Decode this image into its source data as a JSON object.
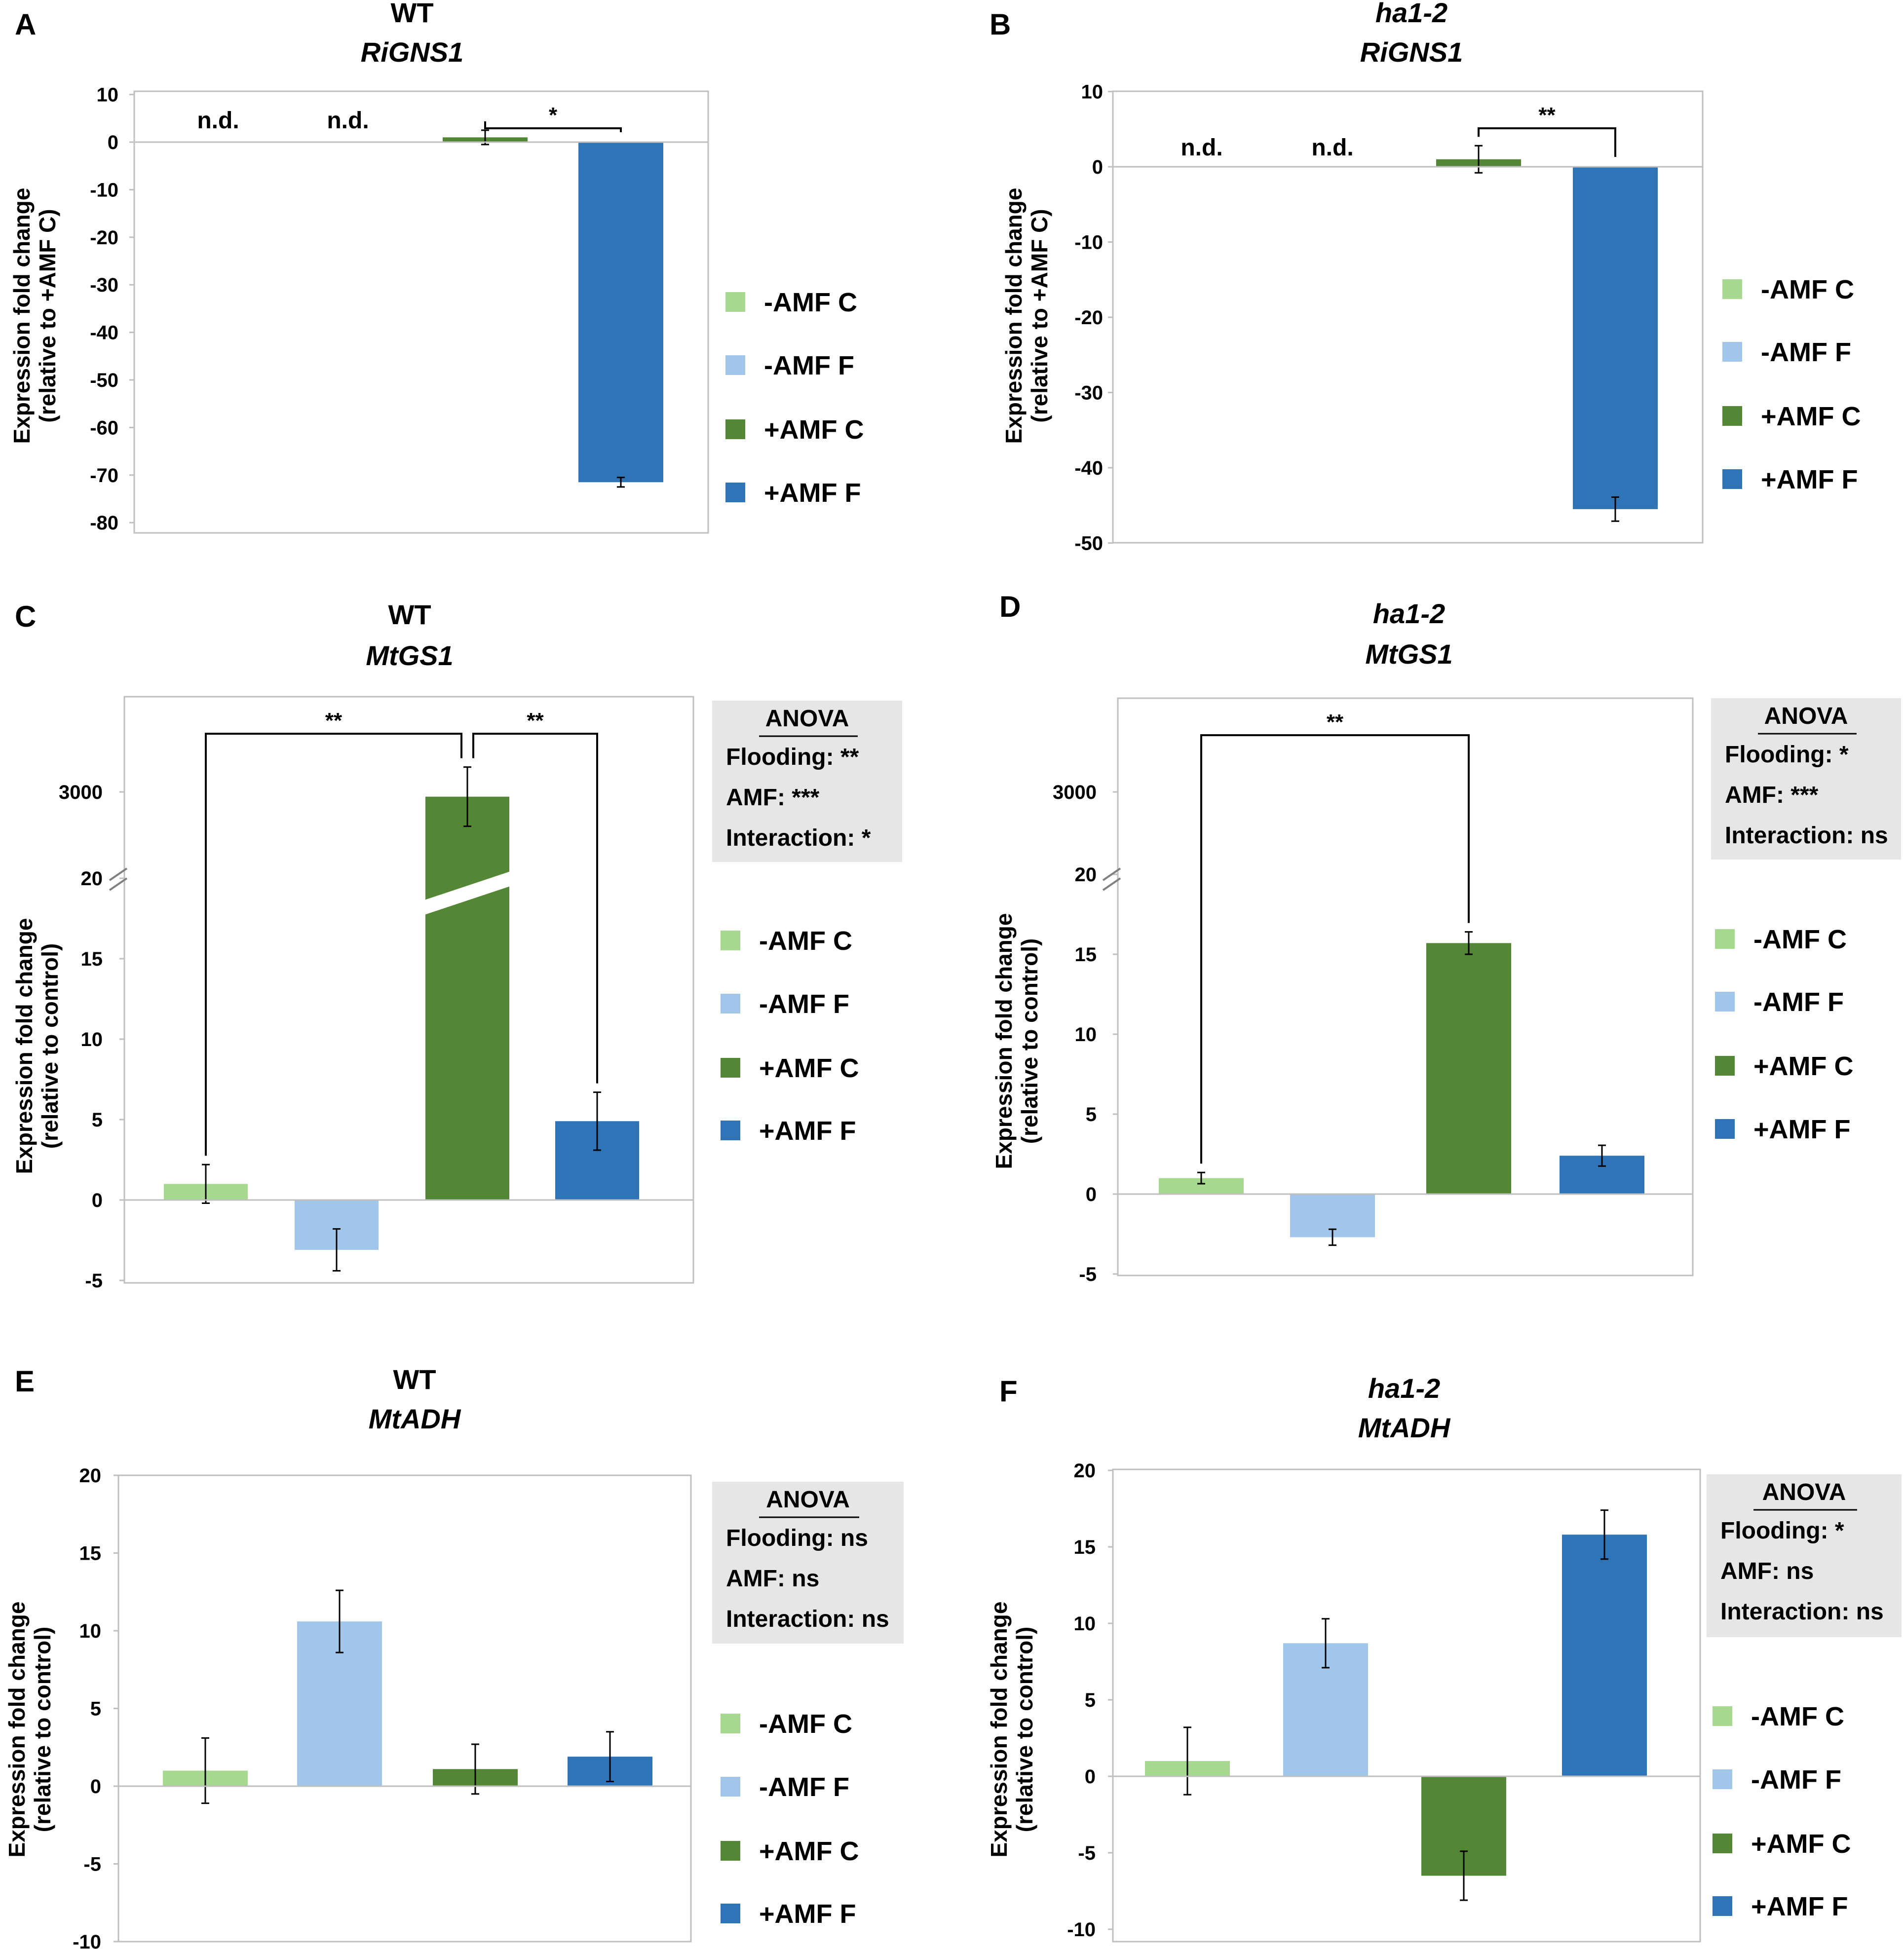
{
  "colors": {
    "minus_amf_c": "#a6d88f",
    "minus_amf_f": "#a2c6ea",
    "plus_amf_c": "#538735",
    "plus_amf_f": "#2e74b6",
    "anova_bg": "#e6e6e6",
    "frame": "#bfbfbf"
  },
  "legend": [
    "-AMF C",
    "-AMF F",
    "+AMF C",
    "+AMF F"
  ],
  "chart_data": [
    {
      "panel": "A",
      "type": "bar",
      "title_line1": "WT",
      "title_line2": "RiGNS1",
      "ylabel_line1": "Expression fold change",
      "ylabel_line2": "(relative to +AMF C)",
      "ylim": [
        -80,
        10
      ],
      "yticks": [
        "10",
        "0",
        "-10",
        "-20",
        "-30",
        "-40",
        "-50",
        "-60",
        "-70",
        "-80"
      ],
      "categories": [
        "-AMF C",
        "-AMF F",
        "+AMF C",
        "+AMF F"
      ],
      "values": [
        null,
        null,
        1,
        -71.5
      ],
      "errors": [
        null,
        null,
        1.5,
        1
      ],
      "nd_labels": [
        "n.d.",
        "n.d."
      ],
      "significance": [
        {
          "from": 2,
          "to": 3,
          "label": "*"
        }
      ],
      "anova": null
    },
    {
      "panel": "B",
      "type": "bar",
      "title_line1": "ha1-2",
      "title_line2": "RiGNS1",
      "ylabel_line1": "Expression fold change",
      "ylabel_line2": "(relative to +AMF C)",
      "ylim": [
        -50,
        10
      ],
      "yticks": [
        "10",
        "0",
        "-10",
        "-20",
        "-30",
        "-40",
        "-50"
      ],
      "categories": [
        "-AMF C",
        "-AMF F",
        "+AMF C",
        "+AMF F"
      ],
      "values": [
        null,
        null,
        1,
        -45.5
      ],
      "errors": [
        null,
        null,
        1.8,
        1.6
      ],
      "nd_labels": [
        "n.d.",
        "n.d."
      ],
      "significance": [
        {
          "from": 2,
          "to": 3,
          "label": "**"
        }
      ],
      "anova": null
    },
    {
      "panel": "C",
      "type": "bar",
      "title_line1": "WT",
      "title_line2": "MtGS1",
      "ylabel_line1": "Expression fold change",
      "ylabel_line2": "(relative to control)",
      "ylim": [
        -5,
        20
      ],
      "axis_break": true,
      "yticks": [
        "3000",
        "20",
        "15",
        "10",
        "5",
        "0",
        "-5"
      ],
      "categories": [
        "-AMF C",
        "-AMF F",
        "+AMF C",
        "+AMF F"
      ],
      "values": [
        1,
        -3.1,
        2960,
        4.9
      ],
      "errors": [
        1.2,
        1.3,
        250,
        1.8
      ],
      "significance": [
        {
          "from": 0,
          "to": 2,
          "label": "**"
        },
        {
          "from": 2,
          "to": 3,
          "label": "**"
        }
      ],
      "anova": {
        "heading": "ANOVA",
        "lines": [
          "Flooding: **",
          "AMF: ***",
          "Interaction: *"
        ]
      }
    },
    {
      "panel": "D",
      "type": "bar",
      "title_line1": "ha1-2",
      "title_line2": "MtGS1",
      "ylabel_line1": "Expression fold change",
      "ylabel_line2": "(relative to control)",
      "ylim": [
        -5,
        20
      ],
      "axis_break": true,
      "yticks": [
        "3000",
        "20",
        "15",
        "10",
        "5",
        "0",
        "-5"
      ],
      "categories": [
        "-AMF C",
        "-AMF F",
        "+AMF C",
        "+AMF F"
      ],
      "values": [
        1,
        -2.7,
        15.7,
        2.4
      ],
      "errors": [
        0.35,
        0.5,
        0.7,
        0.65
      ],
      "significance": [
        {
          "from": 0,
          "to": 2,
          "label": "**"
        }
      ],
      "anova": {
        "heading": "ANOVA",
        "lines": [
          "Flooding: *",
          "AMF: ***",
          "Interaction: ns"
        ]
      }
    },
    {
      "panel": "E",
      "type": "bar",
      "title_line1": "WT",
      "title_line2": "MtADH",
      "ylabel_line1": "Expression fold change",
      "ylabel_line2": "(relative to control)",
      "ylim": [
        -10,
        20
      ],
      "yticks": [
        "20",
        "15",
        "10",
        "5",
        "0",
        "-5",
        "-10"
      ],
      "categories": [
        "-AMF C",
        "-AMF F",
        "+AMF C",
        "+AMF F"
      ],
      "values": [
        1,
        10.6,
        1.1,
        1.9
      ],
      "errors": [
        2.1,
        2.0,
        1.6,
        1.6
      ],
      "significance": [],
      "anova": {
        "heading": "ANOVA",
        "lines": [
          "Flooding: ns",
          "AMF: ns",
          "Interaction: ns"
        ]
      }
    },
    {
      "panel": "F",
      "type": "bar",
      "title_line1": "ha1-2",
      "title_line2": "MtADH",
      "ylabel_line1": "Expression fold change",
      "ylabel_line2": "(relative to control)",
      "ylim": [
        -10,
        20
      ],
      "yticks": [
        "20",
        "15",
        "10",
        "5",
        "0",
        "-5",
        "-10"
      ],
      "categories": [
        "-AMF C",
        "-AMF F",
        "+AMF C",
        "+AMF F"
      ],
      "values": [
        1,
        8.7,
        -6.5,
        15.8
      ],
      "errors": [
        2.2,
        1.6,
        1.6,
        1.6
      ],
      "significance": [],
      "anova": {
        "heading": "ANOVA",
        "lines": [
          "Flooding: *",
          "AMF: ns",
          "Interaction: ns"
        ]
      }
    }
  ]
}
